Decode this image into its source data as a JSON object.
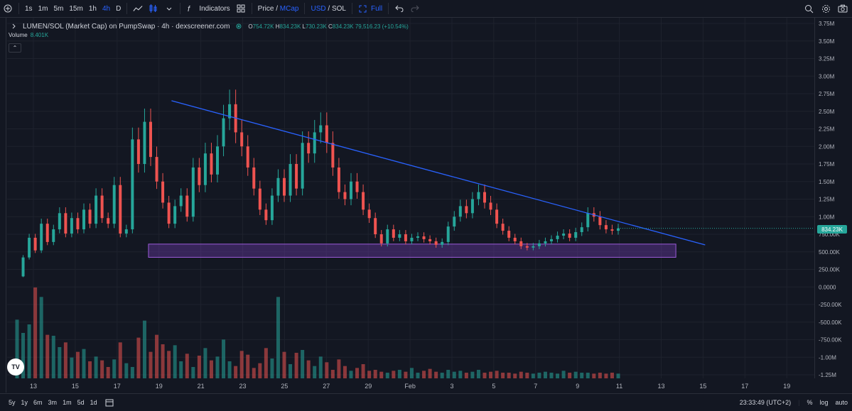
{
  "toolbar": {
    "intervals": [
      "1s",
      "1m",
      "5m",
      "15m",
      "1h",
      "4h",
      "D"
    ],
    "active_interval": "4h",
    "indicators_label": "Indicators",
    "price_label": "Price /",
    "mcap_label": "MCap",
    "usd_label": "USD",
    "sol_label": "/ SOL",
    "full_label": "Full"
  },
  "legend": {
    "title": "LUMEN/SOL (Market Cap) on PumpSwap · 4h · dexscreener.com",
    "o_key": "O",
    "o_val": "754.72K",
    "h_key": "H",
    "h_val": "834.23K",
    "l_key": "L",
    "l_val": "730.23K",
    "c_key": "C",
    "c_val": "834.23K",
    "change": "79,516.23 (+10.54%)",
    "volume_label": "Volume",
    "volume_val": "8.401K"
  },
  "price_badge": "834.23K",
  "bottom": {
    "ranges": [
      "5y",
      "1y",
      "6m",
      "3m",
      "1m",
      "5d",
      "1d"
    ],
    "clock": "23:33:49 (UTC+2)",
    "percent_label": "%",
    "log_label": "log",
    "auto_label": "auto"
  },
  "colors": {
    "up": "#26a69a",
    "down": "#ef5350",
    "trendline": "#2962ff",
    "zone_fill": "#7b3fbf",
    "background": "#131722"
  },
  "chart_data": {
    "type": "candlestick",
    "yticks": [
      "3.75M",
      "3.50M",
      "3.25M",
      "3.00M",
      "2.75M",
      "2.50M",
      "2.25M",
      "2.00M",
      "1.75M",
      "1.50M",
      "1.25M",
      "1.00M",
      "750.00K",
      "500.00K",
      "250.00K",
      "0.0000",
      "-250.00K",
      "-500.00K",
      "-750.00K",
      "-1.00M",
      "-1.25M"
    ],
    "ylim": [
      -1250000,
      3750000
    ],
    "xticks": [
      "13",
      "15",
      "17",
      "19",
      "21",
      "23",
      "25",
      "27",
      "29",
      "Feb",
      "3",
      "5",
      "7",
      "9",
      "11",
      "13",
      "15",
      "17",
      "19"
    ],
    "price_path_k": [
      150,
      420,
      700,
      520,
      900,
      640,
      820,
      1050,
      760,
      980,
      820,
      1100,
      900,
      1300,
      980,
      900,
      1450,
      760,
      820,
      2100,
      1750,
      2350,
      1850,
      1500,
      1200,
      900,
      1150,
      1300,
      1000,
      1700,
      1450,
      1900,
      1600,
      2000,
      2400,
      2600,
      2200,
      2000,
      1700,
      1400,
      1100,
      950,
      1300,
      1550,
      1300,
      1750,
      1400,
      2050,
      1900,
      2200,
      2300,
      2050,
      1700,
      1350,
      1250,
      1500,
      1350,
      1100,
      980,
      750,
      620,
      820,
      700,
      750,
      650,
      700,
      720,
      680,
      650,
      600,
      640,
      860,
      1000,
      1150,
      1050,
      1250,
      1350,
      1200,
      1100,
      900,
      800,
      700,
      650,
      580,
      560,
      580,
      620,
      650,
      680,
      730,
      760,
      700,
      780,
      850,
      1050,
      1000,
      880,
      820,
      800,
      834
    ],
    "volume": [
      620,
      480,
      570,
      960,
      860,
      460,
      450,
      330,
      380,
      220,
      280,
      310,
      180,
      230,
      190,
      120,
      200,
      380,
      160,
      120,
      430,
      610,
      280,
      460,
      360,
      290,
      350,
      180,
      260,
      120,
      240,
      320,
      190,
      230,
      410,
      180,
      130,
      290,
      250,
      110,
      160,
      320,
      210,
      860,
      280,
      150,
      270,
      300,
      190,
      130,
      230,
      170,
      90,
      200,
      130,
      80,
      110,
      150,
      80,
      90,
      70,
      60,
      80,
      90,
      70,
      110,
      60,
      80,
      100,
      70,
      60,
      90,
      70,
      80,
      60,
      70,
      90,
      60,
      70,
      80,
      60,
      60,
      50,
      70,
      60,
      50,
      60,
      70,
      60,
      50,
      80,
      60,
      70,
      60,
      60,
      50,
      60,
      50,
      60,
      50
    ],
    "trendline_pts": [
      [
        "19.6",
        "2.65M"
      ],
      [
        "14.1",
        "598K"
      ]
    ],
    "support_zone": {
      "from": "18.5",
      "to": "12.7",
      "low": "422K",
      "high": "610K"
    }
  }
}
